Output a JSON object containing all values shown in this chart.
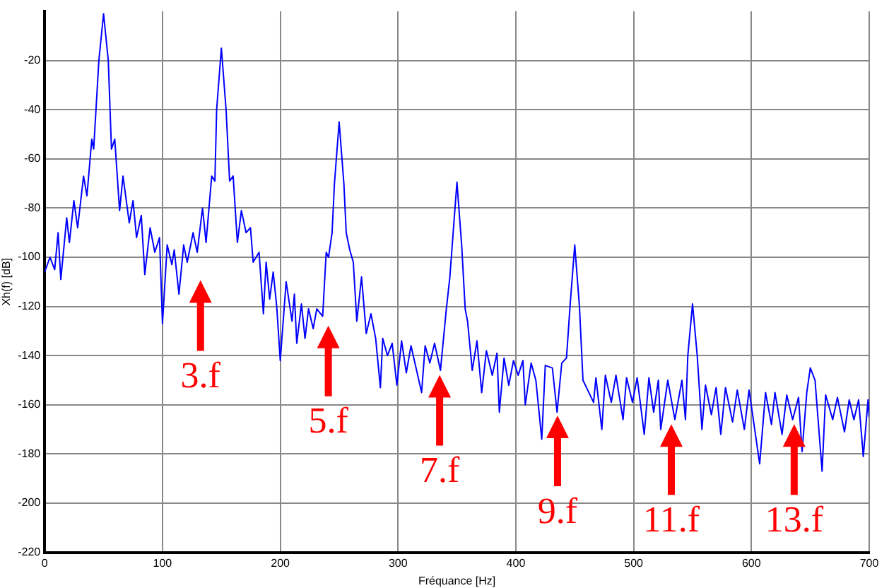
{
  "chart_data": {
    "type": "line",
    "xlabel": "Fréquance [Hz]",
    "ylabel": "Xh(f) [dB]",
    "xlim": [
      0,
      700
    ],
    "ylim": [
      -220,
      0
    ],
    "xticks": [
      0,
      100,
      200,
      300,
      400,
      500,
      600,
      700
    ],
    "yticks": [
      -220,
      -200,
      -180,
      -160,
      -140,
      -120,
      -100,
      -80,
      -60,
      -40,
      -20
    ],
    "grid": true,
    "legend": false,
    "marker": "none",
    "line_style": "solid",
    "series": [
      {
        "color": "#0000ff",
        "x": [
          0,
          4.5,
          8.5,
          11.4,
          13.7,
          18.7,
          21,
          24.8,
          28,
          33,
          35.9,
          40,
          41.6,
          46,
          50,
          54,
          56.7,
          59.5,
          63.6,
          66.5,
          71.8,
          75,
          78,
          82,
          85,
          89.5,
          93.5,
          97.5,
          100,
          104,
          108,
          110,
          114,
          118,
          121,
          126,
          129.5,
          134,
          137,
          141.8,
          144.5,
          146,
          150,
          154,
          157,
          160,
          163.6,
          167,
          171,
          174.7,
          177,
          182,
          185.7,
          188,
          191,
          194,
          197,
          200,
          205,
          210,
          212,
          214,
          218,
          221,
          224,
          228,
          231,
          236,
          239,
          241,
          244,
          246,
          250,
          254,
          256,
          259,
          262,
          265,
          269,
          273,
          277,
          281,
          285,
          287,
          291,
          295,
          299,
          303,
          307,
          311,
          320,
          323,
          327,
          331,
          336,
          341,
          344,
          346,
          350,
          354,
          357,
          359,
          363,
          367,
          371,
          375,
          380,
          384,
          386,
          390,
          394,
          398,
          402,
          406,
          408,
          413,
          417,
          422,
          425,
          431,
          435,
          439,
          443,
          446,
          450,
          454,
          457,
          462,
          466,
          468,
          473,
          476,
          481,
          485,
          491,
          494,
          499,
          503,
          509,
          513,
          517,
          521,
          523,
          529,
          535,
          541,
          544,
          546,
          550,
          554,
          558,
          561,
          566,
          570,
          574,
          578,
          584,
          588,
          594,
          598,
          607,
          612,
          617,
          620,
          626,
          630,
          635,
          640,
          643,
          647,
          650,
          654,
          660,
          663,
          669,
          673,
          679,
          683,
          687,
          691,
          695,
          699,
          700
        ],
        "values": [
          -106,
          -100,
          -105,
          -90,
          -109,
          -84,
          -94,
          -77,
          -88,
          -67,
          -75,
          -52,
          -56,
          -20,
          -1,
          -20,
          -56,
          -52,
          -81,
          -67,
          -86,
          -77,
          -92,
          -83,
          -107,
          -88,
          -98,
          -92,
          -127,
          -95,
          -103,
          -97,
          -115,
          -95,
          -102,
          -90,
          -98,
          -80,
          -94,
          -67,
          -69,
          -40,
          -15,
          -40,
          -69,
          -67,
          -94,
          -81,
          -90,
          -88,
          -102,
          -98,
          -123,
          -102,
          -117,
          -106,
          -120,
          -142,
          -110,
          -126,
          -115,
          -135,
          -119,
          -133,
          -121,
          -129,
          -121,
          -124,
          -98,
          -100,
          -90,
          -70,
          -45,
          -70,
          -90,
          -97,
          -102,
          -126,
          -108,
          -131,
          -123,
          -133,
          -153,
          -133,
          -140,
          -135,
          -152,
          -134,
          -147,
          -136,
          -155,
          -136,
          -143,
          -135,
          -146,
          -121,
          -108,
          -95,
          -69.5,
          -95,
          -121,
          -126,
          -146,
          -134,
          -155,
          -138,
          -148,
          -139,
          -163,
          -141,
          -152,
          -142,
          -148,
          -142,
          -160,
          -143,
          -150,
          -174,
          -144,
          -145,
          -163,
          -143,
          -141,
          -120,
          -95,
          -120,
          -150,
          -155,
          -159,
          -149,
          -170,
          -148,
          -159,
          -148,
          -166,
          -149,
          -159,
          -149,
          -172,
          -149,
          -163,
          -150,
          -170,
          -150,
          -166,
          -150,
          -166,
          -140,
          -119,
          -140,
          -170,
          -152,
          -164,
          -153,
          -172,
          -153,
          -167,
          -154,
          -170,
          -154,
          -184,
          -155,
          -168,
          -155,
          -172,
          -156,
          -166,
          -157,
          -179,
          -155,
          -145,
          -150,
          -187,
          -156,
          -166,
          -157,
          -171,
          -158,
          -166,
          -158,
          -181,
          -158,
          -165
        ]
      }
    ],
    "annotations": [
      "3.f",
      "5.f",
      "7.f",
      "9.f",
      "11.f",
      "13.f"
    ]
  }
}
